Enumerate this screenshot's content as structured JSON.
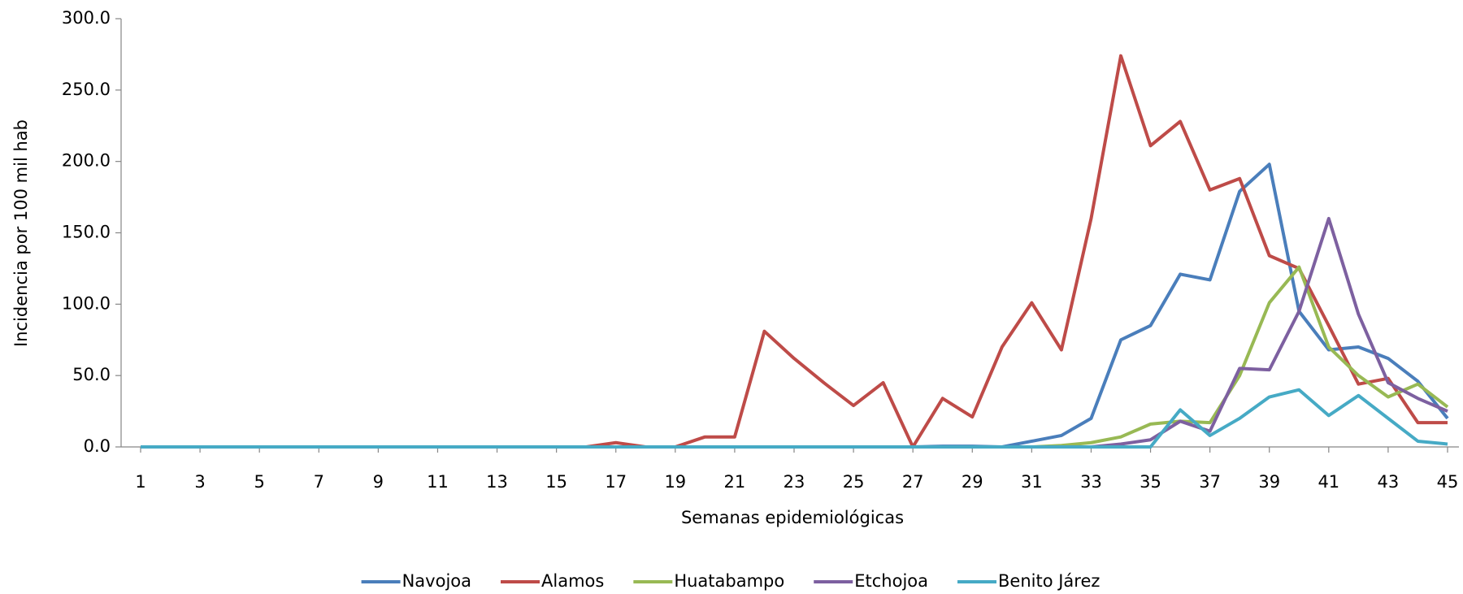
{
  "chart_data": {
    "type": "line",
    "x_label": "Semanas epidemiológicas",
    "y_label": "Incidencia por 100 mil hab",
    "x": [
      1,
      2,
      3,
      4,
      5,
      6,
      7,
      8,
      9,
      10,
      11,
      12,
      13,
      14,
      15,
      16,
      17,
      18,
      19,
      20,
      21,
      22,
      23,
      24,
      25,
      26,
      27,
      28,
      29,
      30,
      31,
      32,
      33,
      34,
      35,
      36,
      37,
      38,
      39,
      40,
      41,
      42,
      43,
      44,
      45
    ],
    "xlim": [
      1,
      45
    ],
    "xticks": [
      1,
      3,
      5,
      7,
      9,
      11,
      13,
      15,
      17,
      19,
      21,
      23,
      25,
      27,
      29,
      31,
      33,
      35,
      37,
      39,
      41,
      43,
      45
    ],
    "ylim": [
      0,
      300
    ],
    "yticks": [
      {
        "value": 0,
        "label": "0.0"
      },
      {
        "value": 50,
        "label": "50.0"
      },
      {
        "value": 100,
        "label": "100.0"
      },
      {
        "value": 150,
        "label": "150.0"
      },
      {
        "value": 200,
        "label": "200.0"
      },
      {
        "value": 250,
        "label": "250.0"
      },
      {
        "value": 300,
        "label": "300.0"
      }
    ],
    "legend": "bottom",
    "series": [
      {
        "name": "Navojoa",
        "color": "#4a7ebb",
        "values": [
          0,
          0,
          0,
          0,
          0,
          0,
          0,
          0,
          0,
          0,
          0,
          0,
          0,
          0,
          0,
          0,
          0,
          0,
          0,
          0,
          0,
          0,
          0,
          0,
          0,
          0,
          0,
          0.5,
          0.5,
          0,
          4,
          8,
          20,
          75,
          85,
          121,
          117,
          179,
          198,
          95,
          68,
          70,
          62,
          46,
          20
        ]
      },
      {
        "name": "Alamos",
        "color": "#be4b48",
        "values": [
          0,
          0,
          0,
          0,
          0,
          0,
          0,
          0,
          0,
          0,
          0,
          0,
          0,
          0,
          0,
          0,
          3,
          0,
          0,
          7,
          7,
          81,
          62,
          45,
          29,
          45,
          0,
          34,
          21,
          70,
          101,
          68,
          160,
          274,
          211,
          228,
          180,
          188,
          134,
          125,
          85,
          44,
          48,
          17,
          17
        ]
      },
      {
        "name": "Huatabampo",
        "color": "#98b954",
        "values": [
          0,
          0,
          0,
          0,
          0,
          0,
          0,
          0,
          0,
          0,
          0,
          0,
          0,
          0,
          0,
          0,
          0,
          0,
          0,
          0,
          0,
          0,
          0,
          0,
          0,
          0,
          0,
          0,
          0,
          0,
          0,
          1,
          3,
          7,
          16,
          18,
          17,
          50,
          101,
          126,
          70,
          50,
          35,
          44,
          28
        ]
      },
      {
        "name": "Etchojoa",
        "color": "#7d60a0",
        "values": [
          0,
          0,
          0,
          0,
          0,
          0,
          0,
          0,
          0,
          0,
          0,
          0,
          0,
          0,
          0,
          0,
          0,
          0,
          0,
          0,
          0,
          0,
          0,
          0,
          0,
          0,
          0,
          0,
          0,
          0,
          0,
          0,
          0,
          2,
          5,
          18,
          11,
          55,
          54,
          95,
          160,
          93,
          45,
          34,
          25
        ]
      },
      {
        "name": "Benito Járez",
        "color": "#46aac5",
        "values": [
          0,
          0,
          0,
          0,
          0,
          0,
          0,
          0,
          0,
          0,
          0,
          0,
          0,
          0,
          0,
          0,
          0,
          0,
          0,
          0,
          0,
          0,
          0,
          0,
          0,
          0,
          0,
          0,
          0,
          0,
          0,
          0,
          0,
          0,
          0,
          26,
          8,
          20,
          35,
          40,
          22,
          36,
          20,
          4,
          2
        ]
      }
    ]
  }
}
